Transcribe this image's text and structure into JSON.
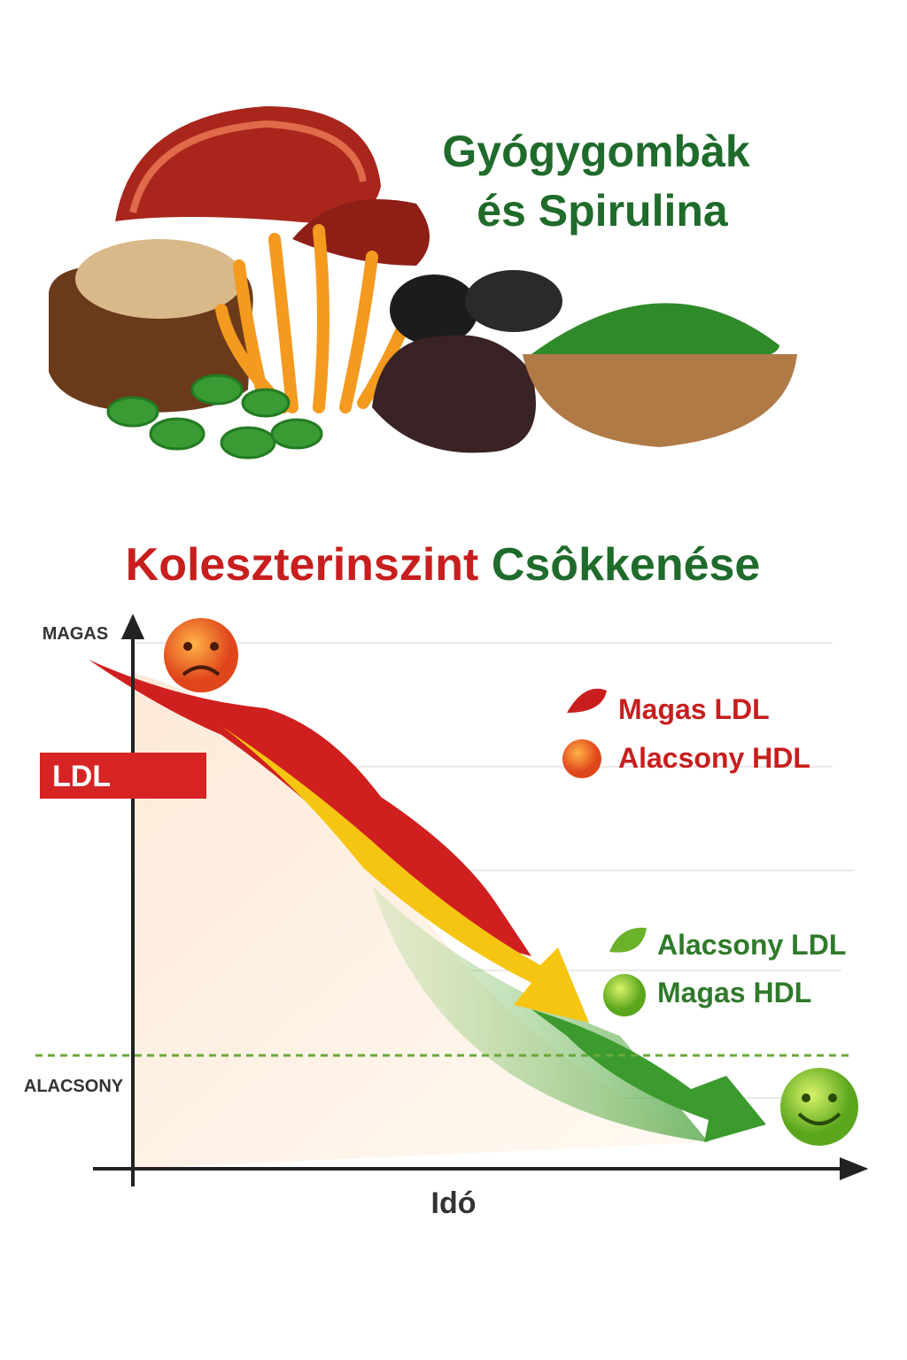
{
  "header": {
    "title_lines": [
      "Gyógygombàk",
      "és Spirulina"
    ]
  },
  "chart": {
    "title_parts": [
      "Koleszterinszint",
      "Csôkkenése"
    ],
    "y_axis": {
      "top": "MAGAS",
      "bottom": "ALACSONY"
    },
    "x_axis": "Idó",
    "badge": "LDL",
    "legend_before": [
      "Magas LDL",
      "Alacsony HDL"
    ],
    "legend_after": [
      "Alacsony LDL",
      "Magas HDL"
    ]
  }
}
